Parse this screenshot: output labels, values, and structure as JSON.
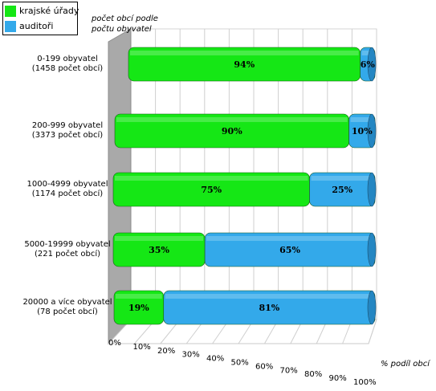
{
  "chart_data": {
    "type": "bar",
    "orientation": "horizontal",
    "stacked": true,
    "percent": true,
    "categories": [
      [
        "0-199 obyvatel",
        "(1458 počet obcí)"
      ],
      [
        "200-999 obyvatel",
        "(3373 počet obcí)"
      ],
      [
        "1000-4999 obyvatel",
        "(1174 počet obcí)"
      ],
      [
        "5000-19999 obyvatel",
        "(221 počet obcí)"
      ],
      [
        "20000 a více obyvatel",
        "(78 počet obcí)"
      ]
    ],
    "series": [
      {
        "name": "krajské úřady",
        "values": [
          94,
          90,
          75,
          35,
          19
        ],
        "labels": [
          "94%",
          "90%",
          "75%",
          "35%",
          "19%"
        ],
        "color": "#15e715"
      },
      {
        "name": "auditoři",
        "values": [
          6,
          10,
          25,
          65,
          81
        ],
        "labels": [
          "6%",
          "10%",
          "25%",
          "65%",
          "81%"
        ],
        "color": "#33a9ea"
      }
    ],
    "ylabel": [
      "počet obcí podle",
      "počtu obyvatel"
    ],
    "xlabel": "% podíl obcí",
    "xticks": [
      "0%",
      "10%",
      "20%",
      "30%",
      "40%",
      "50%",
      "60%",
      "70%",
      "80%",
      "90%",
      "100%"
    ],
    "xlim": [
      0,
      100
    ],
    "grid": true,
    "legend": "top-left",
    "colors": {
      "series1": "#15e715",
      "series2": "#33a9ea",
      "wall": "#a9a9a9"
    }
  }
}
